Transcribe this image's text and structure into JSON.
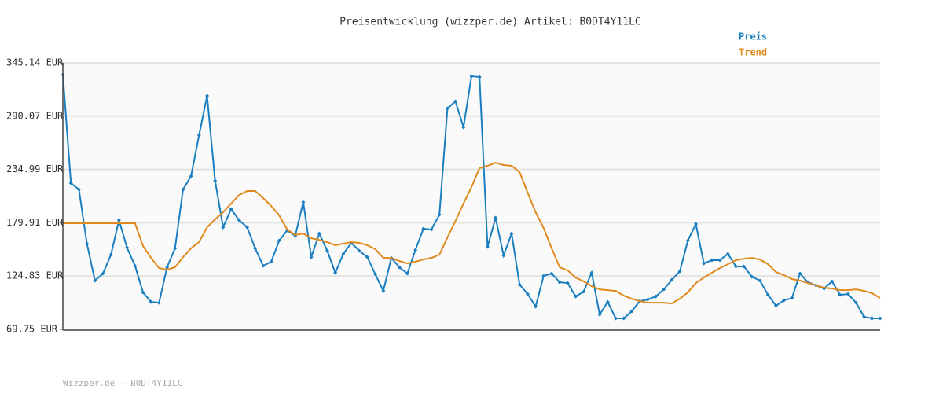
{
  "chart_data": {
    "type": "line",
    "title": "Preisentwicklung (wizzper.de) Artikel: B0DT4Y11LC",
    "footer": "Wizzper.de - B0DT4Y11LC",
    "ylim": [
      69.75,
      345.14
    ],
    "yticks": [
      {
        "value": 69.75,
        "label": "69.75 EUR"
      },
      {
        "value": 124.83,
        "label": "124.83 EUR"
      },
      {
        "value": 179.91,
        "label": "179.91 EUR"
      },
      {
        "value": 234.99,
        "label": "234.99 EUR"
      },
      {
        "value": 290.07,
        "label": "290.07 EUR"
      },
      {
        "value": 345.14,
        "label": "345.14 EUR"
      }
    ],
    "grid": true,
    "legend": "top-right",
    "series": [
      {
        "name": "Preis",
        "color": "#1a7fc0",
        "markers": true,
        "values": [
          332.95,
          220.84,
          214.34,
          158.29,
          120.1,
          127.4,
          146.9,
          182.6,
          154.2,
          135.5,
          107.9,
          98.1,
          97.3,
          133.9,
          153.4,
          214.3,
          228.1,
          270.4,
          311.0,
          223.3,
          175.3,
          194.0,
          182.6,
          175.3,
          153.4,
          135.5,
          139.6,
          161.5,
          172.1,
          166.4,
          201.3,
          144.4,
          168.8,
          150.9,
          128.2,
          147.7,
          159.1,
          150.9,
          144.4,
          126.6,
          109.5,
          143.6,
          133.9,
          127.4,
          151.8,
          173.7,
          172.9,
          188.3,
          298.0,
          305.3,
          278.5,
          331.3,
          330.5,
          155.0,
          185.1,
          146.1,
          168.8,
          116.0,
          106.3,
          93.3,
          124.9,
          127.4,
          118.4,
          117.6,
          103.8,
          108.7,
          128.2,
          85.1,
          98.1,
          81.1,
          81.1,
          88.4,
          98.9,
          100.6,
          103.8,
          111.1,
          120.9,
          129.8,
          161.5,
          178.6,
          137.9,
          141.2,
          141.2,
          147.7,
          134.7,
          134.7,
          124.1,
          120.1,
          105.4,
          94.1,
          99.8,
          102.2,
          127.4,
          118.4,
          115.2,
          111.9,
          119.3,
          105.4,
          106.3,
          97.3,
          82.7,
          81.1,
          81.1
        ]
      },
      {
        "name": "Trend",
        "color": "#e08a1e",
        "markers": false,
        "values": [
          179.4,
          179.4,
          179.4,
          179.4,
          179.4,
          179.4,
          179.4,
          179.4,
          179.4,
          179.4,
          155.8,
          143.6,
          133.1,
          131.4,
          133.9,
          144.4,
          153.4,
          159.9,
          175.3,
          183.4,
          190.8,
          199.7,
          208.6,
          212.7,
          212.7,
          205.4,
          197.2,
          187.5,
          172.9,
          167.2,
          168.8,
          164.0,
          162.3,
          159.9,
          156.7,
          158.3,
          159.9,
          159.1,
          156.7,
          152.6,
          143.6,
          143.6,
          140.4,
          137.9,
          139.6,
          142.0,
          143.6,
          146.9,
          164.7,
          181.8,
          199.7,
          216.8,
          236.3,
          238.7,
          241.9,
          239.5,
          238.7,
          232.2,
          211.1,
          190.8,
          174.5,
          153.4,
          133.9,
          130.7,
          123.3,
          119.3,
          114.4,
          111.1,
          110.3,
          109.5,
          104.6,
          101.4,
          98.9,
          97.3,
          97.3,
          97.3,
          96.5,
          101.4,
          107.9,
          117.6,
          123.3,
          128.2,
          133.1,
          137.1,
          141.2,
          142.8,
          143.6,
          142.0,
          137.1,
          129.0,
          125.8,
          121.7,
          120.1,
          117.6,
          115.2,
          112.8,
          111.9,
          110.3,
          110.3,
          111.1,
          109.5,
          107.1,
          102.2
        ]
      }
    ]
  }
}
